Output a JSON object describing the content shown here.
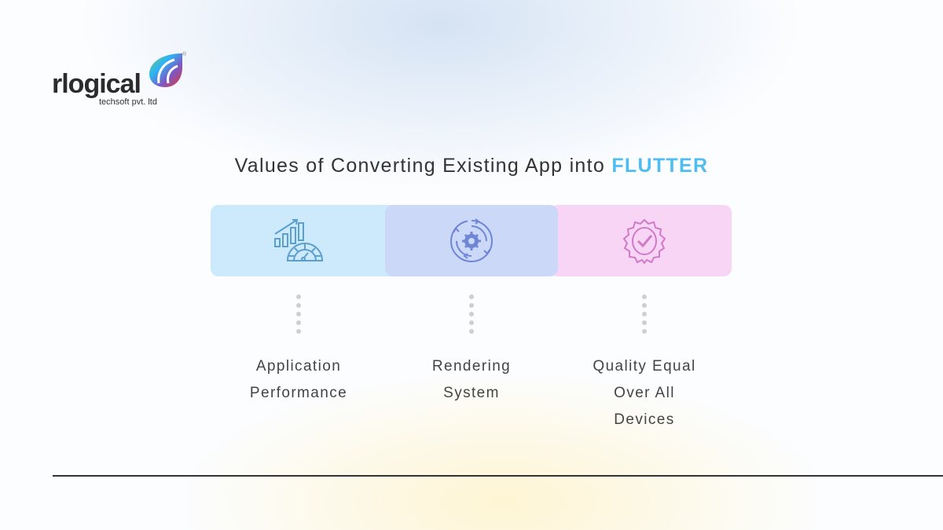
{
  "logo": {
    "word": "rlogical",
    "sub": "techsoft pvt. ltd",
    "reg": "®"
  },
  "title": {
    "prefix": "Values of Converting Existing App into",
    "highlight": "FLUTTER"
  },
  "colors": {
    "accent": "#4fbdf2",
    "card1": "#cde9fc",
    "card2": "#cbd8f8",
    "card3": "#f9d5f5"
  },
  "items": [
    {
      "icon": "performance-chart-gauge-icon",
      "label1": "Application",
      "label2": "Performance",
      "label3": ""
    },
    {
      "icon": "gear-cycle-icon",
      "label1": "Rendering",
      "label2": "System",
      "label3": ""
    },
    {
      "icon": "quality-badge-check-icon",
      "label1": "Quality Equal",
      "label2": "Over All",
      "label3": "Devices"
    }
  ]
}
